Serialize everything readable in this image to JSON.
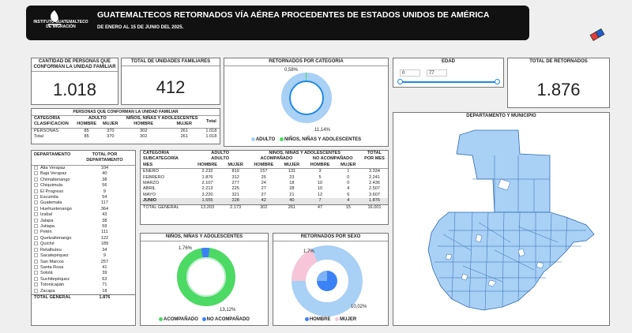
{
  "header": {
    "logo_text": "INSTITUTO GUATEMALTECO DE MIGRACIÓN",
    "title": "GUATEMALTECOS RETORNADOS VÍA AÉREA PROCEDENTES DE ESTADOS UNIDOS DE AMÉRICA",
    "subtitle": "DE ENERO AL 15 DE JUNIO DEL 2025."
  },
  "kpi_family": {
    "label": "CANTIDAD DE PERSONAS QUE CONFORMAN LA UNIDAD FAMILIAR",
    "value": "1.018"
  },
  "kpi_units": {
    "label": "TOTAL DE UNIDADES FAMILIARES",
    "value": "412"
  },
  "kpi_total": {
    "label": "TOTAL DE RETORNADOS",
    "value": "1.876"
  },
  "age": {
    "label": "EDAD",
    "min": "0",
    "max": "77"
  },
  "donut_category": {
    "label": "RETORNADOS POR CATEGORIA",
    "pct_small": "0,58%",
    "pct_big": "11,14%",
    "legend_a": "ADULTO",
    "legend_b": "NIÑOS, NIÑAS Y ADOLESCENTES",
    "color_a": "#a9d0f5",
    "color_b": "#4cd964"
  },
  "family_table": {
    "title": "PERSONAS QUE CONFORMAN LA UNIDAD FAMILIAR",
    "h_cat": "CATEGORIA",
    "h_adult": "ADULTO",
    "h_nna": "NIÑOS, NIÑAS Y ADOLESCENTES",
    "h_total": "Total",
    "h_clas": "CLASIFICACION",
    "h_hombre": "HOMBRE",
    "h_mujer": "MUJER",
    "rows": [
      [
        "PERSONAS",
        "85",
        "370",
        "302",
        "261",
        "1.018"
      ],
      [
        "Total",
        "85",
        "370",
        "302",
        "261",
        "1.018"
      ]
    ]
  },
  "dept_table": {
    "h_dept": "DEPARTAMENTO",
    "h_total": "TOTAL POR DEPARTAMENTO",
    "rows": [
      [
        "Alta Verapaz",
        "104"
      ],
      [
        "Baja Verapaz",
        "40"
      ],
      [
        "Chimaltenango",
        "38"
      ],
      [
        "Chiquimula",
        "56"
      ],
      [
        "El Progreso",
        "9"
      ],
      [
        "Escuintla",
        "54"
      ],
      [
        "Guatemala",
        "117"
      ],
      [
        "Huehuetenango",
        "364"
      ],
      [
        "Izabal",
        "43"
      ],
      [
        "Jalapa",
        "38"
      ],
      [
        "Jutiapa",
        "59"
      ],
      [
        "Petén",
        "111"
      ],
      [
        "Quetzaltenango",
        "122"
      ],
      [
        "Quiché",
        "189"
      ],
      [
        "Retalhuleu",
        "34"
      ],
      [
        "Sacatepéquez",
        "9"
      ],
      [
        "San Marcos",
        "257"
      ],
      [
        "Santa Rosa",
        "41"
      ],
      [
        "Sololá",
        "39"
      ],
      [
        "Suchitepéquez",
        "63"
      ],
      [
        "Totonicapán",
        "71"
      ],
      [
        "Zacapa",
        "18"
      ]
    ],
    "total_label": "TOTAL GENERAL",
    "total_value": "1.876"
  },
  "month_table": {
    "h_cat": "CATEGORÍA",
    "h_subcat": "SUBCATEGORÍA",
    "h_mes": "MES",
    "h_adult": "ADULTO",
    "h_adult2": "ADULTO",
    "h_nna": "NIÑOS, NIÑAS Y ADOLESCENTES",
    "h_acomp": "ACOMPAÑADO",
    "h_noacomp": "NO ACOMPAÑADO",
    "h_total": "TOTAL POR MES",
    "h_hombre": "HOMBRE",
    "h_mujer": "MUJER",
    "rows": [
      [
        "ENERO",
        "2.232",
        "810",
        "157",
        "131",
        "3",
        "1",
        "3.334"
      ],
      [
        "FEBRERO",
        "1.876",
        "312",
        "25",
        "23",
        "5",
        "0",
        "2.241"
      ],
      [
        "MARZO",
        "2.107",
        "277",
        "24",
        "18",
        "10",
        "0",
        "2.436"
      ],
      [
        "ABRIL",
        "2.213",
        "225",
        "27",
        "28",
        "10",
        "4",
        "2.507"
      ],
      [
        "MAYO",
        "3.220",
        "321",
        "27",
        "21",
        "12",
        "6",
        "3.607"
      ],
      [
        "JUNIO",
        "1.555",
        "228",
        "42",
        "40",
        "7",
        "4",
        "1.876"
      ]
    ],
    "total_row": [
      "TOTAL GENERAL",
      "13.203",
      "2.173",
      "302",
      "261",
      "47",
      "15",
      "16.001"
    ]
  },
  "donut_nna": {
    "label": "NIÑOS, NIÑAS Y ADOLESCENTES",
    "pct_small": "1,76%",
    "pct_big": "13,12%",
    "legend_a": "ACOMPAÑADO",
    "legend_b": "NO ACOMPAÑADO",
    "color_a": "#4cd964",
    "color_b": "#3b82f6"
  },
  "donut_sex": {
    "label": "RETORNADOS POR SEXO",
    "pct_small": "1,7%",
    "pct_big": "10,02%",
    "legend_a": "HOMBRE",
    "legend_b": "MUJER",
    "color_a": "#3b82f6",
    "color_b": "#f6c6d8"
  },
  "map": {
    "label": "DEPARTAMENTO Y MUNICIPIO",
    "fill": "#a9d0f5"
  }
}
